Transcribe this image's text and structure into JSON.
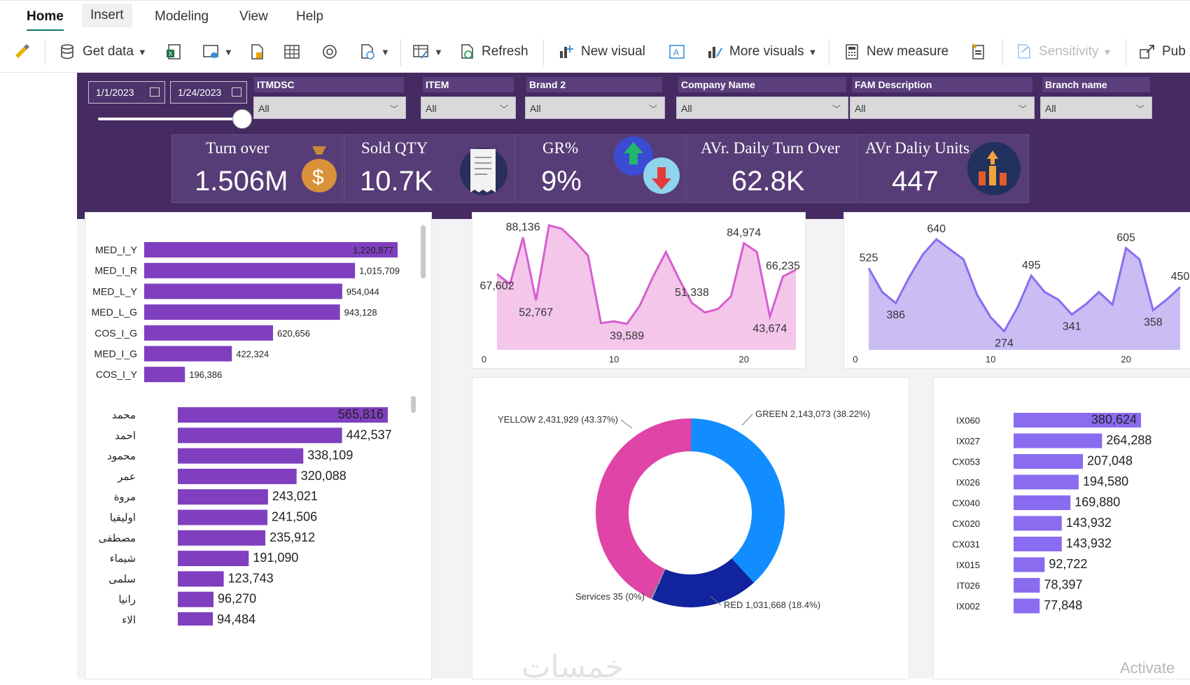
{
  "ribbon": {
    "tabs": [
      "Home",
      "Insert",
      "Modeling",
      "View",
      "Help"
    ],
    "toolbar": {
      "get_data": "Get data",
      "refresh": "Refresh",
      "new_visual": "New visual",
      "more_visuals": "More visuals",
      "new_measure": "New measure",
      "sensitivity": "Sensitivity",
      "publish": "Pub"
    }
  },
  "filters": {
    "date_start": "1/1/2023",
    "date_end": "1/24/2023",
    "slicers": [
      {
        "label": "ITMDSC",
        "value": "All"
      },
      {
        "label": "ITEM",
        "value": "All"
      },
      {
        "label": "Brand 2",
        "value": "All"
      },
      {
        "label": "Company Name",
        "value": "All"
      },
      {
        "label": "FAM Description",
        "value": "All"
      },
      {
        "label": "Branch name",
        "value": "All"
      }
    ]
  },
  "kpis": [
    {
      "title": "Turn over",
      "value": "1.506M",
      "icon": "money-bag-icon"
    },
    {
      "title": "Sold QTY",
      "value": "10.7K",
      "icon": "receipt-icon"
    },
    {
      "title": "GR%",
      "value": "9%",
      "icon": "percent-up-down-icon"
    },
    {
      "title": "AVr. Daily Turn Over",
      "value": "62.8K",
      "icon": ""
    },
    {
      "title": "AVr Daliy Units",
      "value": "447",
      "icon": "bar-chart-up-icon"
    }
  ],
  "chart_data": [
    {
      "type": "bar",
      "orientation": "horizontal",
      "categories": [
        "MED_I_Y",
        "MED_I_R",
        "MED_L_Y",
        "MED_L_G",
        "COS_I_G",
        "MED_I_G",
        "COS_I_Y"
      ],
      "values": [
        1220877,
        1015709,
        954044,
        943128,
        620656,
        422324,
        196386
      ],
      "labels": [
        "1,220,877",
        "1,015,709",
        "954,044",
        "943,128",
        "620,656",
        "422,324",
        "196,386"
      ]
    },
    {
      "type": "bar",
      "orientation": "horizontal",
      "categories": [
        "محمد",
        "احمد",
        "محمود",
        "عمر",
        "مروة",
        "اوليفيا",
        "مصطفى",
        "شيماء",
        "سلمى",
        "رانيا",
        "الاء"
      ],
      "values": [
        565816,
        442537,
        338109,
        320088,
        243021,
        241506,
        235912,
        191090,
        123743,
        96270,
        94484
      ],
      "labels": [
        "565,816",
        "442,537",
        "338,109",
        "320,088",
        "243,021",
        "241,506",
        "235,912",
        "191,090",
        "123,743",
        "96,270",
        "94,484"
      ]
    },
    {
      "type": "area",
      "x": [
        1,
        2,
        3,
        4,
        5,
        6,
        7,
        8,
        9,
        10,
        11,
        12,
        13,
        14,
        15,
        16,
        17,
        18,
        19,
        20,
        21,
        22,
        23,
        24
      ],
      "values": [
        67602,
        62000,
        88136,
        52767,
        95000,
        93000,
        86000,
        78000,
        40000,
        41000,
        39589,
        50000,
        66000,
        80000,
        65000,
        51338,
        46000,
        48000,
        55000,
        84974,
        80000,
        43674,
        66235,
        70000
      ],
      "point_labels": {
        "1": "67,602",
        "3": "88,136",
        "4": "52,767",
        "11": "39,589",
        "16": "51,338",
        "20": "84,974",
        "22": "43,674",
        "23": "66,235"
      },
      "x_ticks": [
        "0",
        "10",
        "20"
      ]
    },
    {
      "type": "area",
      "x": [
        1,
        2,
        3,
        4,
        5,
        6,
        7,
        8,
        9,
        10,
        11,
        12,
        13,
        14,
        15,
        16,
        17,
        18,
        19,
        20,
        21,
        22,
        23,
        24
      ],
      "values": [
        525,
        430,
        386,
        490,
        580,
        640,
        600,
        560,
        420,
        330,
        274,
        370,
        495,
        430,
        400,
        341,
        380,
        430,
        380,
        605,
        560,
        358,
        400,
        450
      ],
      "point_labels": {
        "1": "525",
        "3": "386",
        "6": "640",
        "11": "274",
        "13": "495",
        "16": "341",
        "20": "605",
        "22": "358",
        "24": "450"
      },
      "x_ticks": [
        "0",
        "10",
        "20"
      ]
    },
    {
      "type": "pie",
      "donut": true,
      "categories": [
        "GREEN",
        "RED",
        "Services",
        "YELLOW"
      ],
      "values": [
        2143073,
        1031668,
        35,
        2431929
      ],
      "labels": [
        "GREEN 2,143,073 (38.22%)",
        "RED 1,031,668 (18.4%)",
        "Services 35 (0%)",
        "YELLOW 2,431,929 (43.37%)"
      ],
      "colors": [
        "#118DFF",
        "#12239E",
        "#999999",
        "#E044A7"
      ]
    },
    {
      "type": "bar",
      "orientation": "horizontal",
      "categories": [
        "IX060",
        "IX027",
        "CX053",
        "IX026",
        "CX040",
        "CX020",
        "CX031",
        "IX015",
        "IT026",
        "IX002"
      ],
      "values": [
        380624,
        264288,
        207048,
        194580,
        169880,
        143932,
        143932,
        92722,
        78397,
        77848
      ],
      "labels": [
        "380,624",
        "264,288",
        "207,048",
        "194,580",
        "169,880",
        "143,932",
        "143,932",
        "92,722",
        "78,397",
        "77,848"
      ]
    }
  ],
  "watermark": "Activate",
  "brand_watermark": "خمسات"
}
